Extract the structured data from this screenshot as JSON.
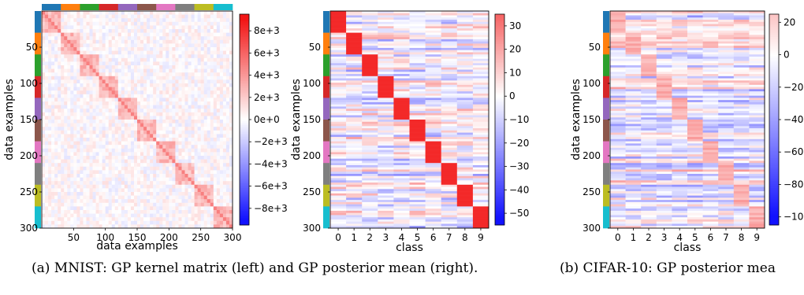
{
  "captions": {
    "a": "(a) MNIST: GP kernel matrix (left) and GP posterior mean (right).",
    "b": "(b) CIFAR-10: GP posterior mea"
  },
  "class_colors": [
    "#1f77b4",
    "#ff7f0e",
    "#2ca02c",
    "#d62728",
    "#9467bd",
    "#8c564b",
    "#e377c2",
    "#7f7f7f",
    "#bcbd22",
    "#17becf"
  ],
  "chart_data": [
    {
      "type": "heatmap",
      "title": "",
      "xlabel": "data examples",
      "ylabel": "data examples",
      "n_rows": 300,
      "n_cols": 300,
      "x_ticks": [
        "50",
        "100",
        "150",
        "200",
        "250",
        "300"
      ],
      "y_ticks": [
        "50",
        "100",
        "150",
        "200",
        "250",
        "300"
      ],
      "class_groups": 10,
      "colorbar_range": [
        -9500,
        9500
      ],
      "colorbar_ticks": [
        "8e+3",
        "6e+3",
        "4e+3",
        "2e+3",
        "0e+0",
        "−2e+3",
        "−4e+3",
        "−6e+3",
        "−8e+3"
      ],
      "colormap": "bwr"
    },
    {
      "type": "heatmap",
      "title": "",
      "xlabel": "class",
      "ylabel": "data examples",
      "n_rows": 300,
      "n_cols": 10,
      "x_ticks": [
        "0",
        "1",
        "2",
        "3",
        "4",
        "5",
        "6",
        "7",
        "8",
        "9"
      ],
      "y_ticks": [
        "50",
        "100",
        "150",
        "200",
        "250",
        "300"
      ],
      "class_groups": 10,
      "colorbar_range": [
        -55,
        35
      ],
      "colorbar_ticks": [
        "30",
        "20",
        "10",
        "0",
        "−10",
        "−20",
        "−30",
        "−40",
        "−50"
      ],
      "colormap": "bwr"
    },
    {
      "type": "heatmap",
      "title": "",
      "xlabel": "class",
      "ylabel": "data examples",
      "n_rows": 300,
      "n_cols": 10,
      "x_ticks": [
        "0",
        "1",
        "2",
        "3",
        "4",
        "5",
        "6",
        "7",
        "8",
        "9"
      ],
      "y_ticks": [
        "50",
        "100",
        "150",
        "200",
        "250",
        "300"
      ],
      "class_groups": 10,
      "colorbar_range": [
        -105,
        25
      ],
      "colorbar_ticks": [
        "20",
        "0",
        "−20",
        "−40",
        "−60",
        "−80",
        "−100"
      ],
      "colormap": "bwr"
    }
  ]
}
